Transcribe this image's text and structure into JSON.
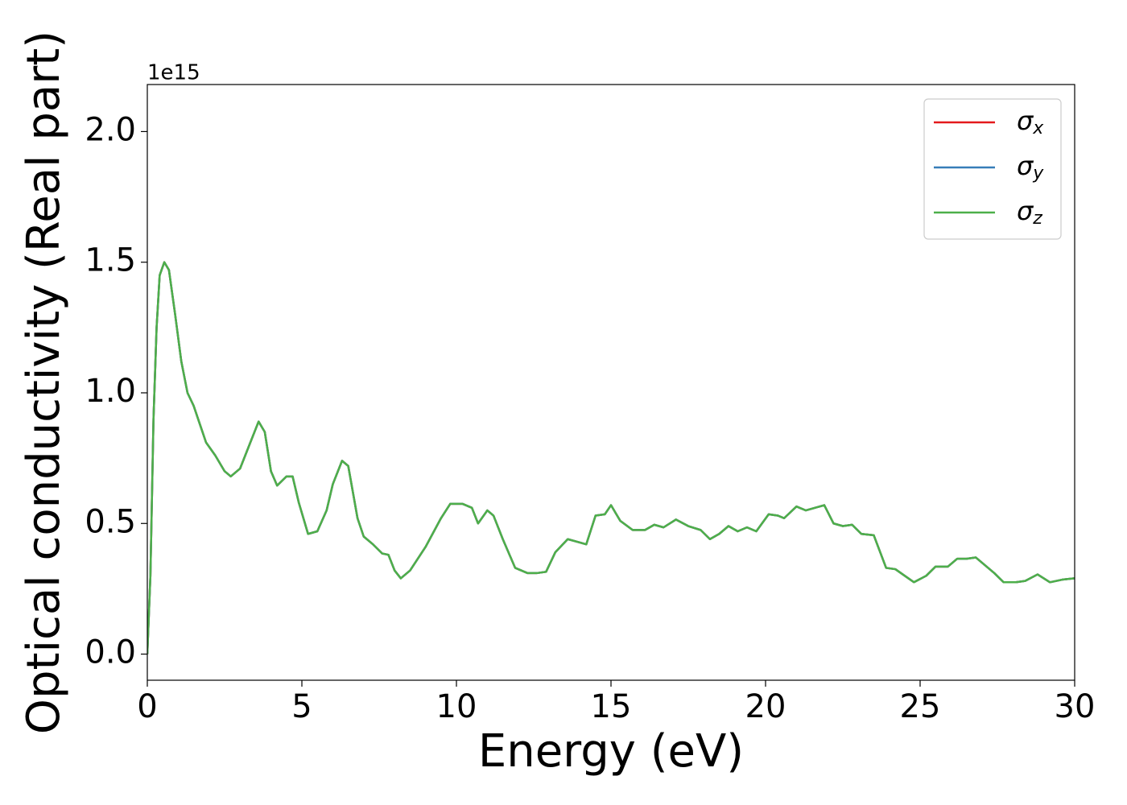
{
  "chart_data": {
    "type": "line",
    "xlabel": "Energy (eV)",
    "ylabel": "Optical conductivity (Real part)",
    "y_offset_label": "1e15",
    "x": [
      0,
      0.1,
      0.2,
      0.3,
      0.4,
      0.55,
      0.7,
      0.9,
      1.1,
      1.3,
      1.5,
      1.7,
      1.9,
      2.2,
      2.5,
      2.7,
      3.0,
      3.3,
      3.6,
      3.8,
      4.0,
      4.2,
      4.5,
      4.7,
      4.9,
      5.2,
      5.5,
      5.8,
      6.0,
      6.3,
      6.5,
      6.8,
      7.0,
      7.3,
      7.6,
      7.8,
      8.0,
      8.2,
      8.5,
      9.0,
      9.5,
      9.8,
      10.2,
      10.5,
      10.7,
      11.0,
      11.2,
      11.5,
      11.9,
      12.3,
      12.6,
      12.9,
      13.2,
      13.6,
      13.9,
      14.2,
      14.5,
      14.8,
      15.0,
      15.3,
      15.7,
      16.1,
      16.4,
      16.7,
      17.1,
      17.5,
      17.9,
      18.2,
      18.5,
      18.8,
      19.1,
      19.4,
      19.7,
      20.1,
      20.4,
      20.6,
      21.0,
      21.3,
      21.6,
      21.9,
      22.2,
      22.5,
      22.8,
      23.1,
      23.5,
      23.9,
      24.2,
      24.5,
      24.8,
      25.2,
      25.5,
      25.9,
      26.2,
      26.5,
      26.8,
      27.1,
      27.4,
      27.7,
      28.1,
      28.4,
      28.8,
      29.2,
      29.6,
      30.0
    ],
    "series": [
      {
        "name": "σx",
        "color": "#e41a1c",
        "values": [
          0.0,
          0.3,
          0.9,
          1.25,
          1.45,
          1.5,
          1.47,
          1.3,
          1.12,
          1.0,
          0.95,
          0.88,
          0.81,
          0.76,
          0.7,
          0.68,
          0.71,
          0.8,
          0.89,
          0.85,
          0.7,
          0.645,
          0.68,
          0.68,
          0.58,
          0.46,
          0.47,
          0.55,
          0.65,
          0.74,
          0.72,
          0.52,
          0.45,
          0.42,
          0.385,
          0.38,
          0.32,
          0.29,
          0.32,
          0.41,
          0.52,
          0.575,
          0.575,
          0.56,
          0.5,
          0.55,
          0.53,
          0.44,
          0.33,
          0.31,
          0.31,
          0.315,
          0.39,
          0.44,
          0.43,
          0.42,
          0.53,
          0.535,
          0.57,
          0.51,
          0.475,
          0.475,
          0.495,
          0.485,
          0.515,
          0.49,
          0.475,
          0.44,
          0.46,
          0.49,
          0.47,
          0.485,
          0.47,
          0.535,
          0.53,
          0.52,
          0.565,
          0.55,
          0.56,
          0.57,
          0.5,
          0.49,
          0.495,
          0.46,
          0.455,
          0.33,
          0.325,
          0.3,
          0.275,
          0.3,
          0.335,
          0.335,
          0.365,
          0.365,
          0.37,
          0.34,
          0.31,
          0.275,
          0.275,
          0.28,
          0.305,
          0.275,
          0.285,
          0.29
        ]
      },
      {
        "name": "σy",
        "color": "#377eb8",
        "values": [
          0.0,
          0.3,
          0.9,
          1.25,
          1.45,
          1.5,
          1.47,
          1.3,
          1.12,
          1.0,
          0.95,
          0.88,
          0.81,
          0.76,
          0.7,
          0.68,
          0.71,
          0.8,
          0.89,
          0.85,
          0.7,
          0.645,
          0.68,
          0.68,
          0.58,
          0.46,
          0.47,
          0.55,
          0.65,
          0.74,
          0.72,
          0.52,
          0.45,
          0.42,
          0.385,
          0.38,
          0.32,
          0.29,
          0.32,
          0.41,
          0.52,
          0.575,
          0.575,
          0.56,
          0.5,
          0.55,
          0.53,
          0.44,
          0.33,
          0.31,
          0.31,
          0.315,
          0.39,
          0.44,
          0.43,
          0.42,
          0.53,
          0.535,
          0.57,
          0.51,
          0.475,
          0.475,
          0.495,
          0.485,
          0.515,
          0.49,
          0.475,
          0.44,
          0.46,
          0.49,
          0.47,
          0.485,
          0.47,
          0.535,
          0.53,
          0.52,
          0.565,
          0.55,
          0.56,
          0.57,
          0.5,
          0.49,
          0.495,
          0.46,
          0.455,
          0.33,
          0.325,
          0.3,
          0.275,
          0.3,
          0.335,
          0.335,
          0.365,
          0.365,
          0.37,
          0.34,
          0.31,
          0.275,
          0.275,
          0.28,
          0.305,
          0.275,
          0.285,
          0.29
        ]
      },
      {
        "name": "σz",
        "color": "#4daf4a",
        "values": [
          0.0,
          0.3,
          0.9,
          1.25,
          1.45,
          1.5,
          1.47,
          1.3,
          1.12,
          1.0,
          0.95,
          0.88,
          0.81,
          0.76,
          0.7,
          0.68,
          0.71,
          0.8,
          0.89,
          0.85,
          0.7,
          0.645,
          0.68,
          0.68,
          0.58,
          0.46,
          0.47,
          0.55,
          0.65,
          0.74,
          0.72,
          0.52,
          0.45,
          0.42,
          0.385,
          0.38,
          0.32,
          0.29,
          0.32,
          0.41,
          0.52,
          0.575,
          0.575,
          0.56,
          0.5,
          0.55,
          0.53,
          0.44,
          0.33,
          0.31,
          0.31,
          0.315,
          0.39,
          0.44,
          0.43,
          0.42,
          0.53,
          0.535,
          0.57,
          0.51,
          0.475,
          0.475,
          0.495,
          0.485,
          0.515,
          0.49,
          0.475,
          0.44,
          0.46,
          0.49,
          0.47,
          0.485,
          0.47,
          0.535,
          0.53,
          0.52,
          0.565,
          0.55,
          0.56,
          0.57,
          0.5,
          0.49,
          0.495,
          0.46,
          0.455,
          0.33,
          0.325,
          0.3,
          0.275,
          0.3,
          0.335,
          0.335,
          0.365,
          0.365,
          0.37,
          0.34,
          0.31,
          0.275,
          0.275,
          0.28,
          0.305,
          0.275,
          0.285,
          0.29
        ]
      }
    ],
    "xlim": [
      0,
      30
    ],
    "xticks": [
      0,
      5,
      10,
      15,
      20,
      25,
      30
    ],
    "ylim": [
      -0.1,
      2.18
    ],
    "yticks": [
      {
        "value": 0,
        "label": "0.0"
      },
      0.5,
      {
        "value": 1,
        "label": "1.0"
      },
      1.5,
      {
        "value": 2,
        "label": "2.0"
      }
    ],
    "grid": false,
    "legend": "upper right"
  }
}
